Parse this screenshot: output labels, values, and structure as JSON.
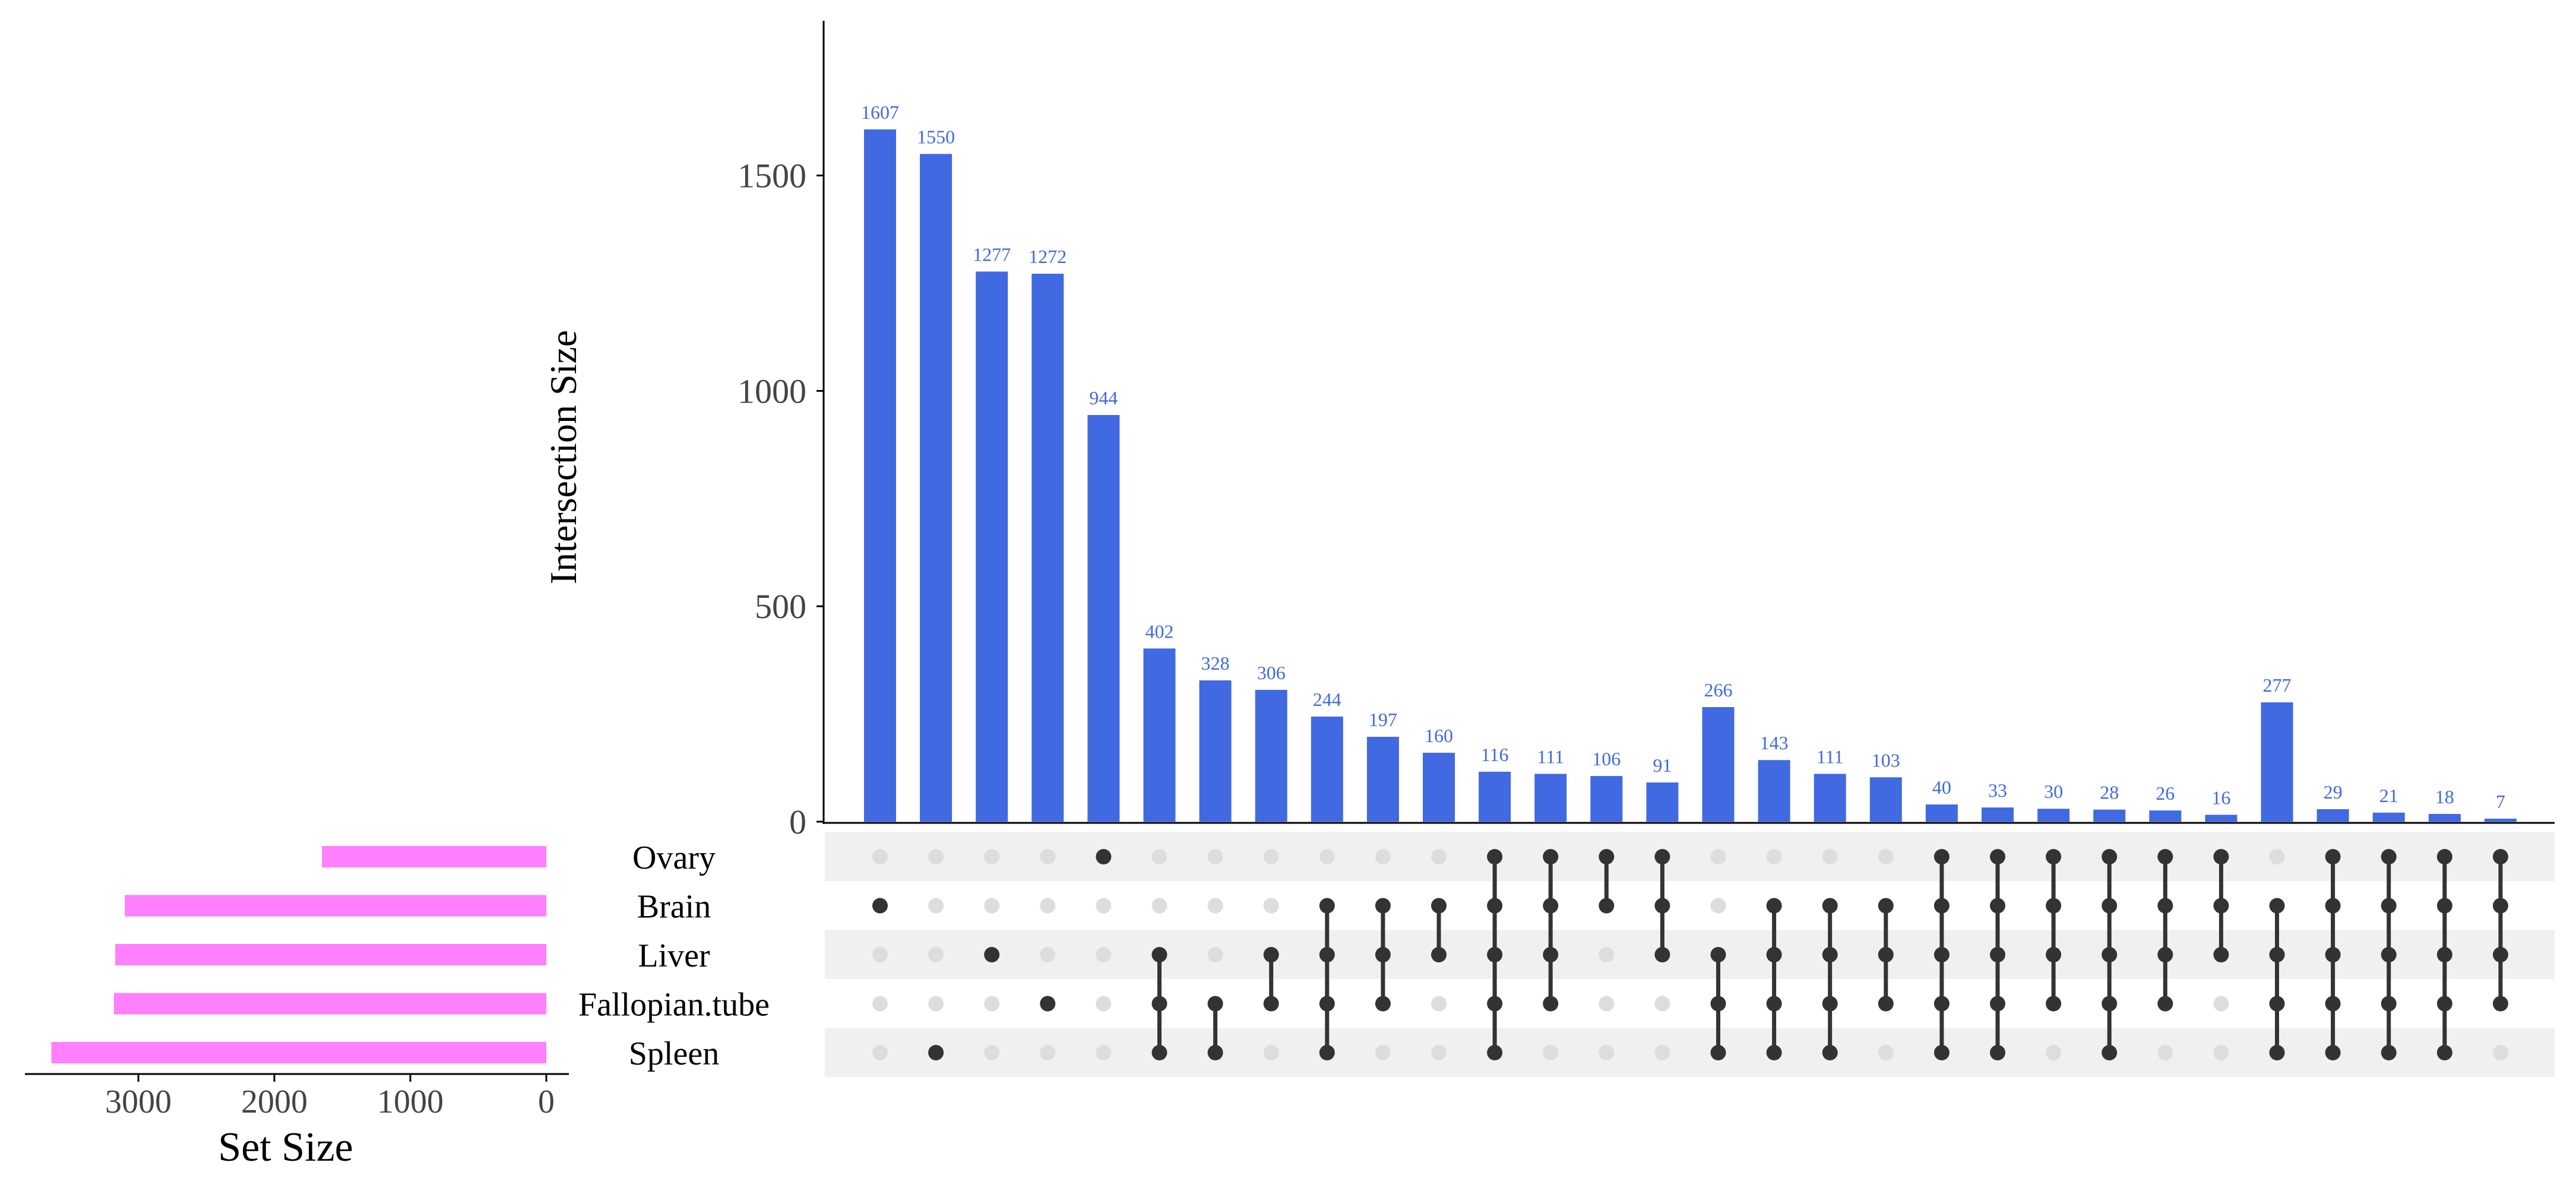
{
  "chart_data": {
    "type": "upset",
    "colors": {
      "intersection_bar": "#4169E1",
      "set_bar": "#FF80FF",
      "dot_active": "#333333",
      "dot_inactive": "#DDDDDD",
      "row_stripe": "#F0F0F0",
      "bar_label": "#4169E1"
    },
    "intersection_axis": {
      "label": "Intersection Size",
      "ylim": [
        0,
        1800
      ],
      "ticks": [
        0,
        500,
        1000,
        1500
      ],
      "tick_labels": [
        "0",
        "500",
        "1000",
        "1500"
      ]
    },
    "set_axis": {
      "label": "Set Size",
      "xlim": [
        3700,
        0
      ],
      "ticks": [
        3000,
        2000,
        1000,
        0
      ],
      "tick_labels": [
        "3000",
        "2000",
        "1000",
        "0"
      ]
    },
    "sets": [
      {
        "name": "Ovary",
        "size": 1650
      },
      {
        "name": "Brain",
        "size": 3100
      },
      {
        "name": "Liver",
        "size": 3170
      },
      {
        "name": "Fallopian.tube",
        "size": 3180
      },
      {
        "name": "Spleen",
        "size": 3640
      }
    ],
    "intersections": [
      {
        "value": 1607,
        "label": "1607",
        "members": [
          "Brain"
        ]
      },
      {
        "value": 1550,
        "label": "1550",
        "members": [
          "Spleen"
        ]
      },
      {
        "value": 1277,
        "label": "1277",
        "members": [
          "Liver"
        ]
      },
      {
        "value": 1272,
        "label": "1272",
        "members": [
          "Fallopian.tube"
        ]
      },
      {
        "value": 944,
        "label": "944",
        "members": [
          "Ovary"
        ]
      },
      {
        "value": 402,
        "label": "402",
        "members": [
          "Liver",
          "Fallopian.tube",
          "Spleen"
        ]
      },
      {
        "value": 328,
        "label": "328",
        "members": [
          "Fallopian.tube",
          "Spleen"
        ]
      },
      {
        "value": 306,
        "label": "306",
        "members": [
          "Liver",
          "Fallopian.tube"
        ]
      },
      {
        "value": 244,
        "label": "244",
        "members": [
          "Brain",
          "Liver",
          "Fallopian.tube",
          "Spleen"
        ]
      },
      {
        "value": 197,
        "label": "197",
        "members": [
          "Brain",
          "Liver",
          "Fallopian.tube"
        ]
      },
      {
        "value": 160,
        "label": "160",
        "members": [
          "Brain",
          "Liver"
        ]
      },
      {
        "value": 116,
        "label": "116",
        "members": [
          "Ovary",
          "Brain",
          "Liver",
          "Fallopian.tube",
          "Spleen"
        ]
      },
      {
        "value": 111,
        "label": "111",
        "members": [
          "Ovary",
          "Brain",
          "Liver",
          "Fallopian.tube"
        ]
      },
      {
        "value": 106,
        "label": "106",
        "members": [
          "Ovary",
          "Brain"
        ]
      },
      {
        "value": 91,
        "label": "91",
        "members": [
          "Ovary",
          "Brain",
          "Liver"
        ]
      },
      {
        "value": 266,
        "label": "266",
        "members": [
          "Liver",
          "Fallopian.tube",
          "Spleen"
        ]
      },
      {
        "value": 143,
        "label": "143",
        "members": [
          "Brain",
          "Liver",
          "Fallopian.tube",
          "Spleen"
        ]
      },
      {
        "value": 111,
        "label": "111",
        "members": [
          "Brain",
          "Liver",
          "Fallopian.tube",
          "Spleen"
        ]
      },
      {
        "value": 103,
        "label": "103",
        "members": [
          "Brain",
          "Liver",
          "Fallopian.tube"
        ]
      },
      {
        "value": 40,
        "label": "40",
        "members": [
          "Ovary",
          "Brain",
          "Liver",
          "Fallopian.tube",
          "Spleen"
        ]
      },
      {
        "value": 33,
        "label": "33",
        "members": [
          "Ovary",
          "Brain",
          "Liver",
          "Fallopian.tube",
          "Spleen"
        ]
      },
      {
        "value": 30,
        "label": "30",
        "members": [
          "Ovary",
          "Brain",
          "Liver",
          "Fallopian.tube"
        ]
      },
      {
        "value": 28,
        "label": "28",
        "members": [
          "Ovary",
          "Brain",
          "Liver",
          "Fallopian.tube",
          "Spleen"
        ]
      },
      {
        "value": 26,
        "label": "26",
        "members": [
          "Ovary",
          "Brain",
          "Liver",
          "Fallopian.tube"
        ]
      },
      {
        "value": 16,
        "label": "16",
        "members": [
          "Ovary",
          "Brain",
          "Liver"
        ]
      },
      {
        "value": 277,
        "label": "277",
        "members": [
          "Brain",
          "Liver",
          "Fallopian.tube",
          "Spleen"
        ]
      },
      {
        "value": 29,
        "label": "29",
        "members": [
          "Ovary",
          "Brain",
          "Liver",
          "Fallopian.tube",
          "Spleen"
        ]
      },
      {
        "value": 21,
        "label": "21",
        "members": [
          "Ovary",
          "Brain",
          "Liver",
          "Fallopian.tube",
          "Spleen"
        ]
      },
      {
        "value": 18,
        "label": "18",
        "members": [
          "Ovary",
          "Brain",
          "Liver",
          "Fallopian.tube",
          "Spleen"
        ]
      },
      {
        "value": 7,
        "label": "7",
        "members": [
          "Ovary",
          "Brain",
          "Liver",
          "Fallopian.tube"
        ]
      }
    ]
  }
}
